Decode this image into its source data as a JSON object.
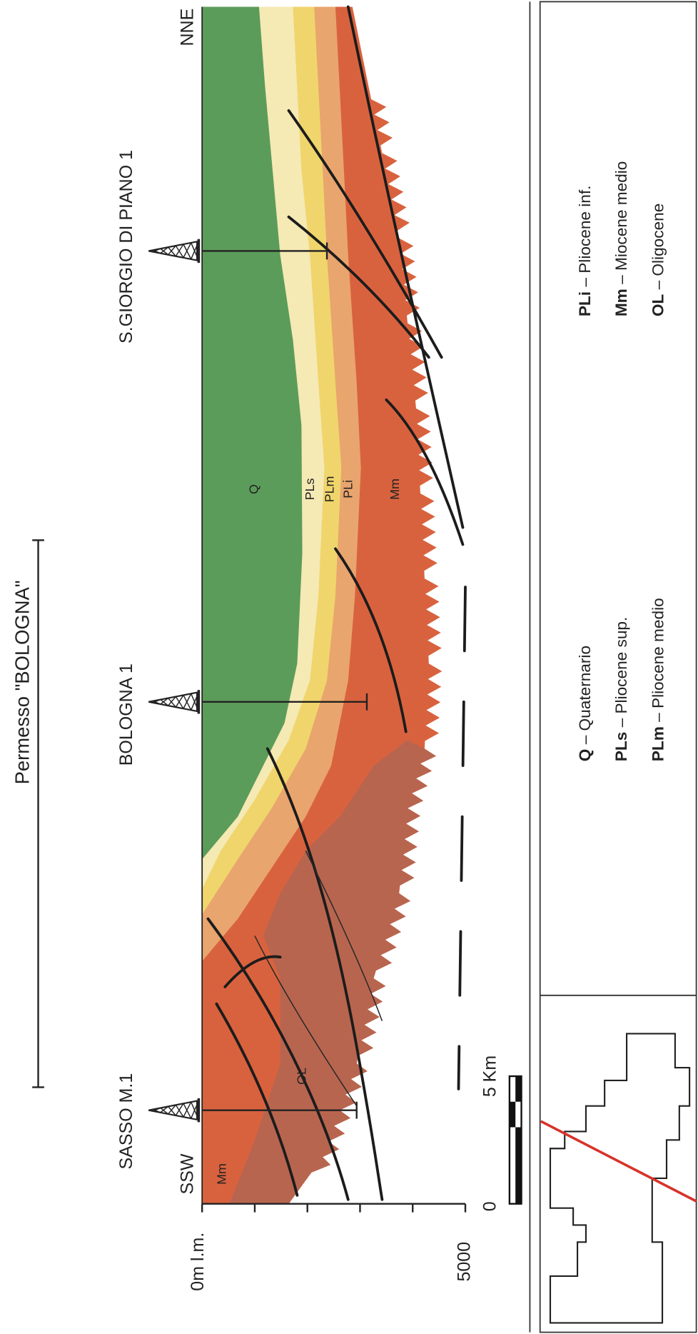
{
  "title": "Permesso \"BOLOGNA\"",
  "wells": [
    "SASSO M.1",
    "BOLOGNA 1",
    "S.GIORGIO DI PIANO 1"
  ],
  "directions": {
    "left": "SSW",
    "right": "NNE"
  },
  "depth_axis": {
    "top": "0m l.m.",
    "bottom": "5000"
  },
  "scale_bar": {
    "start": "0",
    "end": "5 Km"
  },
  "layer_labels": [
    "Q",
    "PLs",
    "PLm",
    "PLi",
    "Mm",
    "Mm",
    "OL"
  ],
  "legend": [
    {
      "code": "Q",
      "label": "– Quaternario"
    },
    {
      "code": "PLs",
      "label": "– Pliocene sup."
    },
    {
      "code": "PLm",
      "label": "– Pliocene medio"
    },
    {
      "code": "PLi",
      "label": "– Pliocene inf."
    },
    {
      "code": "Mm",
      "label": "– Miocene medio"
    },
    {
      "code": "OL",
      "label": "– Oligocene"
    }
  ]
}
